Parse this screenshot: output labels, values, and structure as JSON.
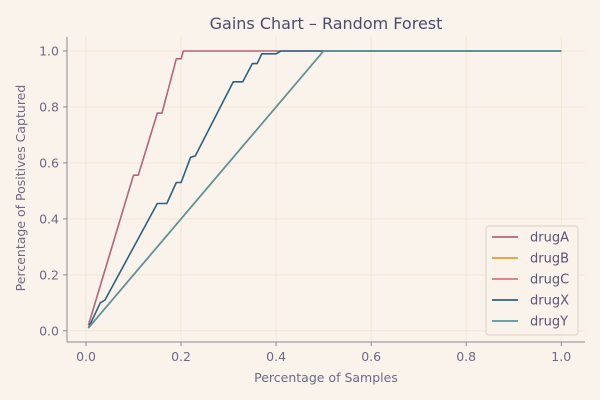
{
  "chart_data": {
    "type": "line",
    "title": "Gains Chart – Random Forest",
    "xlabel": "Percentage of Samples",
    "ylabel": "Percentage of Positives Captured",
    "xlim": [
      -0.04,
      1.05
    ],
    "ylim": [
      -0.04,
      1.05
    ],
    "xticks": [
      0.0,
      0.2,
      0.4,
      0.6,
      0.8,
      1.0
    ],
    "yticks": [
      0.0,
      0.2,
      0.4,
      0.6,
      0.8,
      1.0
    ],
    "tick_labels": [
      "0.0",
      "0.2",
      "0.4",
      "0.6",
      "0.8",
      "1.0"
    ],
    "grid": true,
    "legend_position": "lower-right",
    "series": [
      {
        "name": "drugA",
        "color": "#b5637a",
        "points": [
          [
            0.005,
            0.02
          ],
          [
            0.1,
            0.556
          ],
          [
            0.11,
            0.556
          ],
          [
            0.15,
            0.778
          ],
          [
            0.16,
            0.778
          ],
          [
            0.19,
            0.972
          ],
          [
            0.2,
            0.972
          ],
          [
            0.205,
            1.0
          ],
          [
            1.0,
            1.0
          ]
        ]
      },
      {
        "name": "drugB",
        "color": "#e8963c",
        "points": [
          [
            0.005,
            0.01
          ],
          [
            0.5,
            1.0
          ],
          [
            1.0,
            1.0
          ]
        ]
      },
      {
        "name": "drugC",
        "color": "#d9787a",
        "points": [
          [
            0.005,
            0.01
          ],
          [
            0.5,
            1.0
          ],
          [
            1.0,
            1.0
          ]
        ]
      },
      {
        "name": "drugX",
        "color": "#2f627e",
        "points": [
          [
            0.005,
            0.01
          ],
          [
            0.03,
            0.1
          ],
          [
            0.04,
            0.11
          ],
          [
            0.15,
            0.455
          ],
          [
            0.17,
            0.455
          ],
          [
            0.19,
            0.53
          ],
          [
            0.2,
            0.53
          ],
          [
            0.22,
            0.62
          ],
          [
            0.23,
            0.625
          ],
          [
            0.31,
            0.89
          ],
          [
            0.33,
            0.89
          ],
          [
            0.35,
            0.955
          ],
          [
            0.36,
            0.955
          ],
          [
            0.37,
            0.99
          ],
          [
            0.4,
            0.99
          ],
          [
            0.41,
            1.0
          ],
          [
            1.0,
            1.0
          ]
        ]
      },
      {
        "name": "drugY",
        "color": "#57969c",
        "points": [
          [
            0.005,
            0.01
          ],
          [
            0.5,
            1.0
          ],
          [
            1.0,
            1.0
          ]
        ]
      }
    ]
  }
}
